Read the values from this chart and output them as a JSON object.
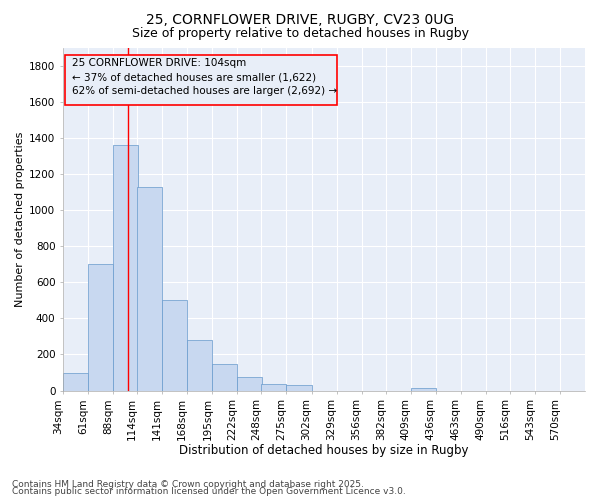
{
  "title1": "25, CORNFLOWER DRIVE, RUGBY, CV23 0UG",
  "title2": "Size of property relative to detached houses in Rugby",
  "xlabel": "Distribution of detached houses by size in Rugby",
  "ylabel": "Number of detached properties",
  "bin_labels": [
    "34sqm",
    "61sqm",
    "88sqm",
    "114sqm",
    "141sqm",
    "168sqm",
    "195sqm",
    "222sqm",
    "248sqm",
    "275sqm",
    "302sqm",
    "329sqm",
    "356sqm",
    "382sqm",
    "409sqm",
    "436sqm",
    "463sqm",
    "490sqm",
    "516sqm",
    "543sqm",
    "570sqm"
  ],
  "bin_edges": [
    34,
    61,
    88,
    114,
    141,
    168,
    195,
    222,
    248,
    275,
    302,
    329,
    356,
    382,
    409,
    436,
    463,
    490,
    516,
    543,
    570
  ],
  "bar_heights": [
    100,
    700,
    1360,
    1130,
    500,
    280,
    145,
    75,
    35,
    30,
    0,
    0,
    0,
    0,
    15,
    0,
    0,
    0,
    0,
    0,
    0
  ],
  "bar_color": "#c8d8f0",
  "bar_edge_color": "#6699cc",
  "ylim": [
    0,
    1900
  ],
  "yticks": [
    0,
    200,
    400,
    600,
    800,
    1000,
    1200,
    1400,
    1600,
    1800
  ],
  "vline_x": 104,
  "vline_color": "red",
  "annotation_line1": "25 CORNFLOWER DRIVE: 104sqm",
  "annotation_line2": "← 37% of detached houses are smaller (1,622)",
  "annotation_line3": "62% of semi-detached houses are larger (2,692) →",
  "annotation_box_color": "red",
  "bg_color": "#ffffff",
  "plot_bg_color": "#e8eef8",
  "grid_color": "#ffffff",
  "footer1": "Contains HM Land Registry data © Crown copyright and database right 2025.",
  "footer2": "Contains public sector information licensed under the Open Government Licence v3.0.",
  "title1_fontsize": 10,
  "title2_fontsize": 9,
  "xlabel_fontsize": 8.5,
  "ylabel_fontsize": 8,
  "tick_fontsize": 7.5,
  "annotation_fontsize": 7.5,
  "footer_fontsize": 6.5
}
